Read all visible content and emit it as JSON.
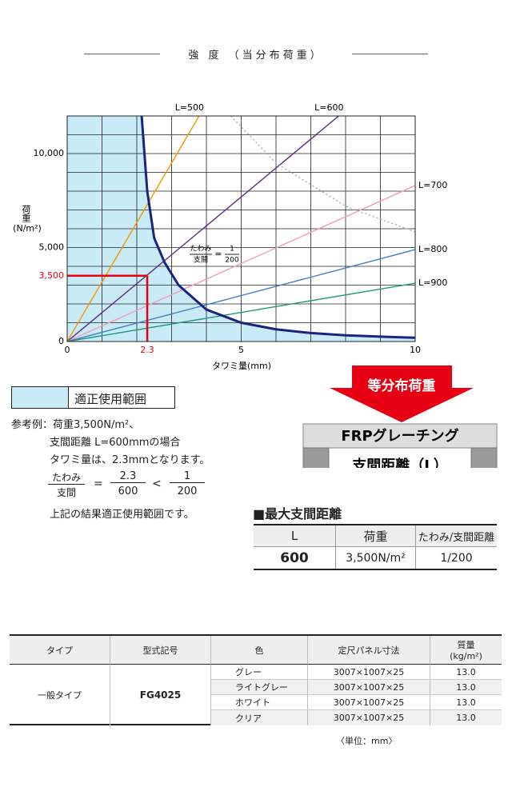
{
  "header": {
    "title": "強 度 （当分布荷重）"
  },
  "chart_data": {
    "type": "line",
    "xlabel": "タワミ量(mm)",
    "ylabel": "荷重",
    "ylabel_unit": "(N/m²)",
    "xlim": [
      0,
      10
    ],
    "ylim": [
      0,
      12000
    ],
    "xticks": [
      0,
      5,
      10
    ],
    "yticks": [
      0,
      {
        "value": 5000,
        "label": "5,000"
      },
      {
        "value": 10000,
        "label": "10,000"
      }
    ],
    "xgrid": [
      0,
      1,
      2,
      3,
      4,
      5,
      6,
      7,
      8,
      9,
      10
    ],
    "ygrid": [
      0,
      1000,
      2000,
      3000,
      4000,
      5000,
      6000,
      7000,
      8000,
      9000,
      10000,
      11000,
      12000
    ],
    "grid": true,
    "series": [
      {
        "name": "L=500",
        "color": "#f39800",
        "x": [
          0,
          3.79
        ],
        "values": [
          0,
          12000
        ]
      },
      {
        "name": "L=600",
        "color": "#5b2a86",
        "x": [
          0,
          7.8
        ],
        "values": [
          0,
          12000
        ]
      },
      {
        "name": "L=700",
        "color": "#f29cb7",
        "x": [
          0,
          10
        ],
        "values": [
          0,
          8300
        ]
      },
      {
        "name": "L=800",
        "color": "#3f7fc8",
        "x": [
          0,
          10
        ],
        "values": [
          0,
          4890
        ]
      },
      {
        "name": "L=900",
        "color": "#1a9a7e",
        "x": [
          0,
          10
        ],
        "values": [
          0,
          3100
        ]
      },
      {
        "color": "#aaaaaa",
        "dashed": true,
        "x": [
          4.7,
          6,
          8,
          10
        ],
        "values": [
          12000,
          9500,
          7200,
          5830
        ]
      },
      {
        "color": "#1a237e",
        "width": 3,
        "fill_below": "#c9eaf7",
        "x": [
          2.14,
          2.3,
          2.5,
          2.8,
          3.2,
          4,
          5,
          6,
          7,
          8,
          9,
          10
        ],
        "values": [
          12000,
          8000,
          5500,
          4200,
          3000,
          1700,
          1000,
          650,
          450,
          330,
          260,
          200
        ]
      }
    ],
    "reference": {
      "x": 2.3,
      "y": {
        "value": 3500,
        "label": "3,500"
      },
      "color": "#e60012"
    },
    "annotation": {
      "top": "たわみ",
      "bottom": "支間",
      "eq": "=",
      "num": "1",
      "den": "200"
    }
  },
  "legend_box": {
    "label": "適正使用範囲",
    "color": "#c9eaf7"
  },
  "example": {
    "lines": [
      "参考例：荷重3,500N/m²、",
      "支間距離 L=600mmの場合",
      "タワミ量は、2.3mmとなります。"
    ],
    "formula": {
      "a_top": "たわみ",
      "a_bottom": "支間",
      "eq": "=",
      "b_top": "2.3",
      "b_bottom": "600",
      "lt": "<",
      "c_top": "1",
      "c_bottom": "200"
    },
    "conclusion": "上記の結果適正使用範囲です。"
  },
  "diagram": {
    "arrow": "等分布荷重",
    "grating": "FRPグレーチング",
    "span": "支間距離（L）"
  },
  "max_span": {
    "title": "■最大支間距離",
    "headers": [
      "L",
      "荷重",
      "たわみ/支間距離"
    ],
    "row": [
      "600",
      "3,500N/m²",
      "1/200"
    ]
  },
  "spec_table": {
    "headers": [
      "タイプ",
      "型式記号",
      "色",
      "定尺パネル寸法"
    ],
    "mass_header": [
      "質量",
      "(kg/m²)"
    ],
    "type": "一般タイプ",
    "model": "FG4025",
    "rows": [
      [
        "グレー",
        "3007×1007×25",
        "13.0"
      ],
      [
        "ライトグレー",
        "3007×1007×25",
        "13.0"
      ],
      [
        "ホワイト",
        "3007×1007×25",
        "13.0"
      ],
      [
        "クリア",
        "3007×1007×25",
        "13.0"
      ]
    ],
    "unit_note": "〈単位：mm〉"
  }
}
